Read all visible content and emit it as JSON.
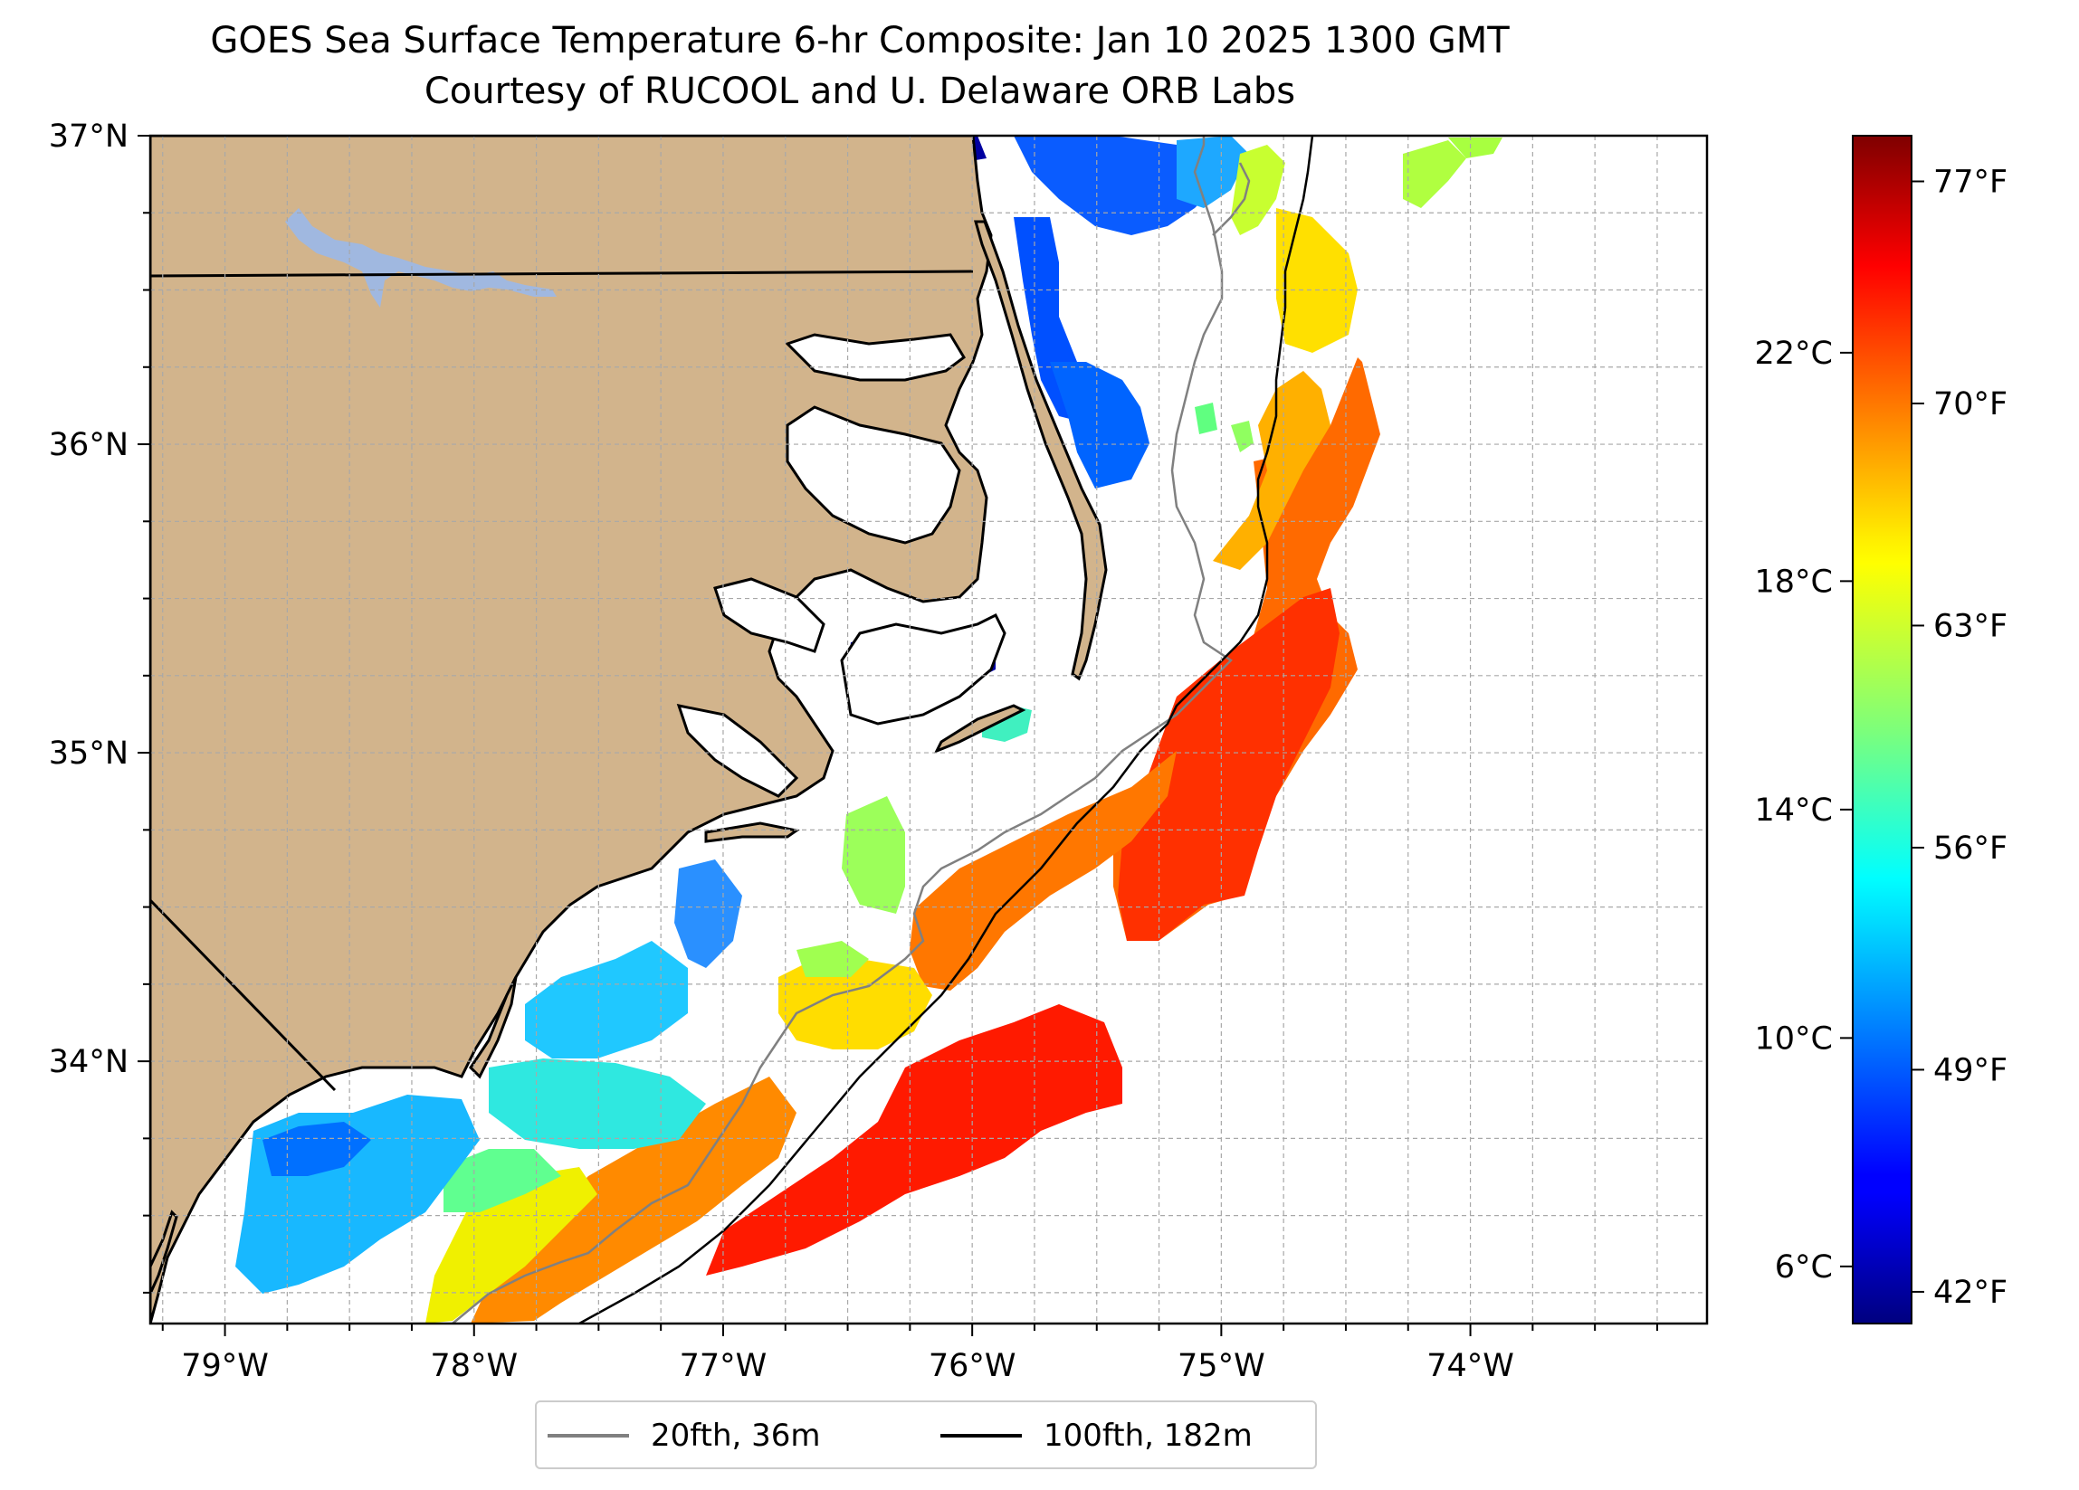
{
  "title": "GOES Sea Surface Temperature 6-hr Composite: Jan 10 2025 1300 GMT",
  "subtitle": "Courtesy of RUCOOL and U. Delaware ORB Labs",
  "map": {
    "lon_range": [
      -79.3,
      -73.05
    ],
    "lat_range": [
      33.15,
      37.0
    ],
    "lon_ticks": [
      {
        "value": -79,
        "label": "79°W"
      },
      {
        "value": -78,
        "label": "78°W"
      },
      {
        "value": -77,
        "label": "77°W"
      },
      {
        "value": -76,
        "label": "76°W"
      },
      {
        "value": -75,
        "label": "75°W"
      },
      {
        "value": -74,
        "label": "74°W"
      }
    ],
    "lat_ticks": [
      {
        "value": 37,
        "label": "37°N"
      },
      {
        "value": 36,
        "label": "36°N"
      },
      {
        "value": 35,
        "label": "35°N"
      },
      {
        "value": 34,
        "label": "34°N"
      }
    ],
    "gridlines": true,
    "land_color": "#d2b48c",
    "water_color": "#ffffff",
    "lake_color": "#a0b8e0"
  },
  "colorbar": {
    "colormap": "jet",
    "range_c": [
      5.0,
      25.8
    ],
    "celsius_ticks": [
      {
        "value": 6,
        "label": "6°C"
      },
      {
        "value": 10,
        "label": "10°C"
      },
      {
        "value": 14,
        "label": "14°C"
      },
      {
        "value": 18,
        "label": "18°C"
      },
      {
        "value": 22,
        "label": "22°C"
      }
    ],
    "fahrenheit_ticks": [
      {
        "value": 42,
        "label": "42°F"
      },
      {
        "value": 49,
        "label": "49°F"
      },
      {
        "value": 56,
        "label": "56°F"
      },
      {
        "value": 63,
        "label": "63°F"
      },
      {
        "value": 70,
        "label": "70°F"
      },
      {
        "value": 77,
        "label": "77°F"
      }
    ]
  },
  "legend": {
    "items": [
      {
        "label": "20fth, 36m",
        "color": "#808080"
      },
      {
        "label": "100fth, 182m",
        "color": "#000000"
      }
    ]
  }
}
